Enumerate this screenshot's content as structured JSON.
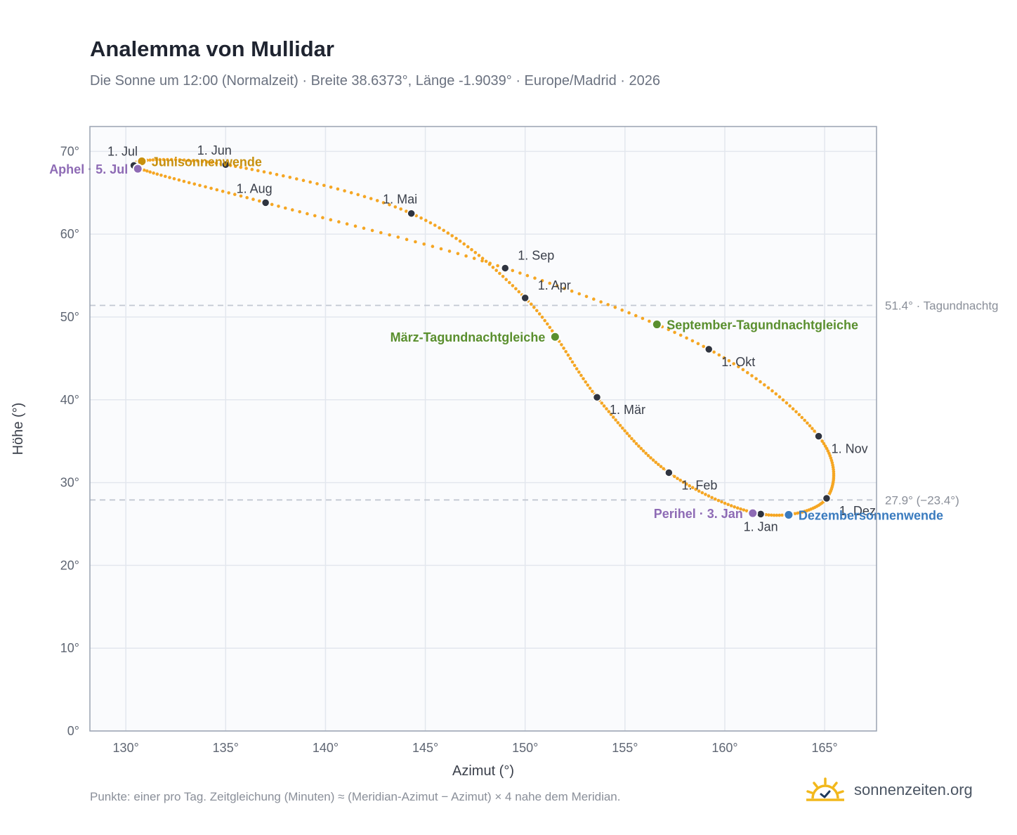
{
  "header": {
    "title": "Analemma von Mullidar",
    "subtitle": "Die Sonne um 12:00 (Normalzeit) · Breite 38.6373°, Länge -1.9039° · Europe/Madrid · 2026"
  },
  "footer": {
    "note": "Punkte: einer pro Tag. Zeitgleichung (Minuten) ≈ (Meridian-Azimut − Azimut) × 4 nahe dem Meridian.",
    "brand": "sonnenzeiten.org",
    "brand_icon": "sun-check-icon"
  },
  "colors": {
    "curve": "#f5a623",
    "month_marker": "#2f3440",
    "solstice_june": "#c8900e",
    "solstice_december": "#3a7bbf",
    "equinox": "#5a8f2e",
    "apsis": "#8e6bb5",
    "grid": "#e3e7ee",
    "reference_line": "#c2c8d2",
    "plot_background": "#fafbfd",
    "frame": "#9aa3b2"
  },
  "chart_data": {
    "type": "scatter",
    "xlabel": "Azimut (°)",
    "ylabel": "Höhe (°)",
    "xlim": [
      128.2,
      167.6
    ],
    "ylim": [
      0,
      73
    ],
    "x_ticks": [
      130,
      135,
      140,
      145,
      150,
      155,
      160,
      165
    ],
    "y_ticks": [
      0,
      10,
      20,
      30,
      40,
      50,
      60,
      70
    ],
    "x_tick_suffix": "°",
    "y_tick_suffix": "°",
    "grid": true,
    "series": [
      {
        "points": [
          [
            161.8,
            26.2
          ],
          [
            157.2,
            31.2
          ],
          [
            153.6,
            40.3
          ],
          [
            150.0,
            52.3
          ],
          [
            144.3,
            62.5
          ],
          [
            135.0,
            68.4
          ],
          [
            130.4,
            68.3
          ],
          [
            137.0,
            63.8
          ],
          [
            149.0,
            55.9
          ],
          [
            159.2,
            46.1
          ],
          [
            164.7,
            35.6
          ],
          [
            165.1,
            28.1
          ]
        ]
      }
    ],
    "month_markers": [
      {
        "label": "1. Jan",
        "x": 161.8,
        "y": 26.2,
        "anchor": "below"
      },
      {
        "label": "1. Feb",
        "x": 157.2,
        "y": 31.2,
        "anchor": "below-right"
      },
      {
        "label": "1. Mär",
        "x": 153.6,
        "y": 40.3,
        "anchor": "below-right"
      },
      {
        "label": "1. Apr",
        "x": 150.0,
        "y": 52.3,
        "anchor": "above-right"
      },
      {
        "label": "1. Mai",
        "x": 144.3,
        "y": 62.5,
        "anchor": "above-left"
      },
      {
        "label": "1. Jun",
        "x": 135.0,
        "y": 68.4,
        "anchor": "above-left"
      },
      {
        "label": "1. Jul",
        "x": 130.4,
        "y": 68.3,
        "anchor": "above-left"
      },
      {
        "label": "1. Aug",
        "x": 137.0,
        "y": 63.8,
        "anchor": "above-left"
      },
      {
        "label": "1. Sep",
        "x": 149.0,
        "y": 55.9,
        "anchor": "above-right"
      },
      {
        "label": "1. Okt",
        "x": 159.2,
        "y": 46.1,
        "anchor": "below-right"
      },
      {
        "label": "1. Nov",
        "x": 164.7,
        "y": 35.6,
        "anchor": "below-right"
      },
      {
        "label": "1. Dez",
        "x": 165.1,
        "y": 28.1,
        "anchor": "below-right"
      }
    ],
    "events": [
      {
        "label": "Junisonnenwende",
        "x": 130.8,
        "y": 68.8,
        "color_key": "solstice_june",
        "anchor": "right"
      },
      {
        "label": "Aphel · 5. Jul",
        "x": 130.6,
        "y": 67.9,
        "color_key": "apsis",
        "anchor": "left"
      },
      {
        "label": "März-Tagundnachtgleiche",
        "x": 151.5,
        "y": 47.6,
        "color_key": "equinox",
        "anchor": "left"
      },
      {
        "label": "September-Tagundnachtgleiche",
        "x": 156.6,
        "y": 49.1,
        "color_key": "equinox",
        "anchor": "right"
      },
      {
        "label": "Perihel · 3. Jan",
        "x": 161.4,
        "y": 26.3,
        "color_key": "apsis",
        "anchor": "left"
      },
      {
        "label": "Dezembersonnenwende",
        "x": 163.2,
        "y": 26.1,
        "color_key": "solstice_december",
        "anchor": "right"
      }
    ],
    "reference_lines": [
      {
        "y": 51.4,
        "label": "51.4° · Tagundnachtg"
      },
      {
        "y": 27.9,
        "label": "27.9° (−23.4°)"
      }
    ]
  }
}
